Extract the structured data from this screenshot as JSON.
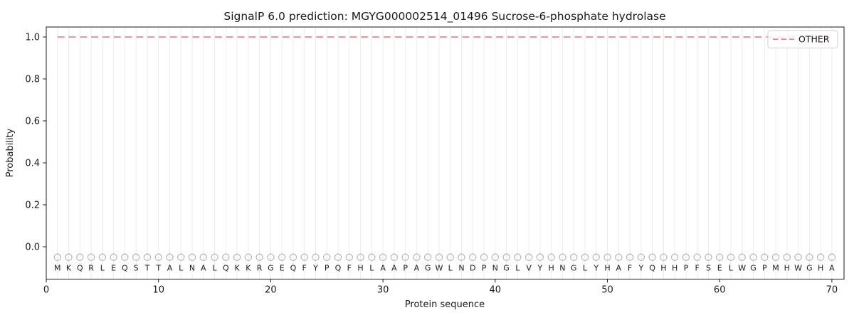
{
  "chart_data": {
    "type": "line",
    "title": "SignalP 6.0 prediction: MGYG000002514_01496 Sucrose-6-phosphate hydrolase",
    "xlabel": "Protein sequence",
    "ylabel": "Probability",
    "xlim": [
      0,
      71.1
    ],
    "ylim": [
      -0.16,
      1.05
    ],
    "x_ticks": [
      0,
      10,
      20,
      30,
      40,
      50,
      60,
      70
    ],
    "y_ticks": [
      0.0,
      0.2,
      0.4,
      0.6,
      0.8,
      1.0
    ],
    "grid": {
      "vertical_line_per_residue": true
    },
    "legend": {
      "position": "upper-right",
      "entries": [
        {
          "label": "OTHER",
          "line_style": "dashed",
          "color": "#f28484"
        }
      ]
    },
    "series": [
      {
        "name": "OTHER",
        "style": "dashed",
        "color": "#f28484",
        "x_start": 1,
        "x_end": 70,
        "constant_value": 1.0
      }
    ],
    "sequence": "MKQRLEQSTTALNALQKKRGEQFYPQFHLAAPAGWLNDPNGLVYHNGLYHAFYQHHPFSELWGPMHWGHA",
    "residue_markers": {
      "shape": "open-circle",
      "value": -0.05,
      "color": "#b5b5b5"
    }
  },
  "colors": {
    "axis": "#1a1a1a",
    "text": "#1a1a1a",
    "grid": "#ececec",
    "marker": "#b5b5b5",
    "line_other": "#f28484",
    "legend_border": "#d2d2d2",
    "legend_background": "rgba(255,255,255,0.85)"
  }
}
